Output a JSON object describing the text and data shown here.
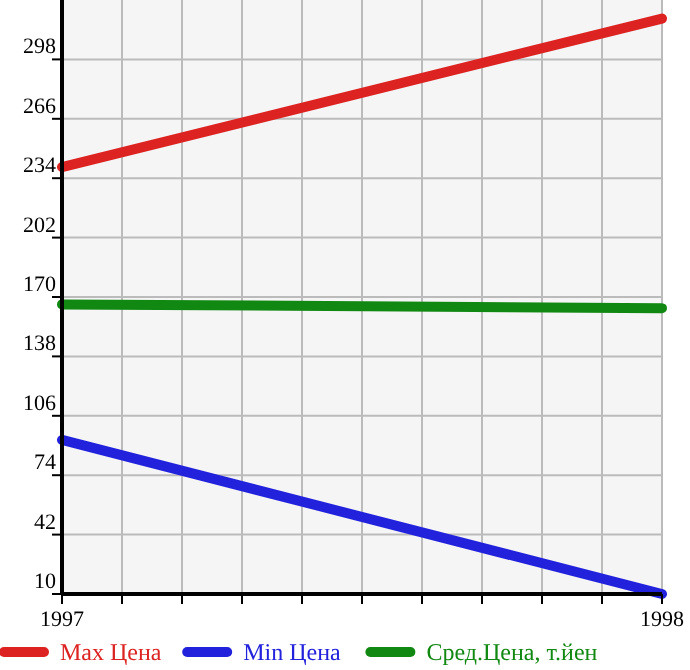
{
  "chart_data": {
    "type": "line",
    "x": [
      1997,
      1998
    ],
    "series": [
      {
        "name": "Max Цена",
        "color": "#dd2222",
        "values": [
          240,
          320
        ]
      },
      {
        "name": "Min Цена",
        "color": "#2222dd",
        "values": [
          93,
          10
        ]
      },
      {
        "name": "Сред.Цена, т.йен",
        "color": "#118811",
        "values": [
          166,
          164
        ]
      }
    ],
    "xlim": [
      1997,
      1998
    ],
    "xticks": [
      1997,
      {
        "value": 1997.1,
        "label": null
      },
      {
        "value": 1997.2,
        "label": null
      },
      {
        "value": 1997.3,
        "label": null
      },
      {
        "value": 1997.4,
        "label": null
      },
      {
        "value": 1997.5,
        "label": null
      },
      {
        "value": 1997.6,
        "label": null
      },
      {
        "value": 1997.7,
        "label": null
      },
      {
        "value": 1997.8,
        "label": null
      },
      {
        "value": 1997.9,
        "label": null
      },
      1998
    ],
    "ylim": [
      10,
      330
    ],
    "yticks": [
      10,
      42,
      74,
      106,
      138,
      170,
      202,
      234,
      266,
      298
    ],
    "grid": true,
    "legend": "bottom",
    "marker": "none",
    "line_style": "solid"
  }
}
